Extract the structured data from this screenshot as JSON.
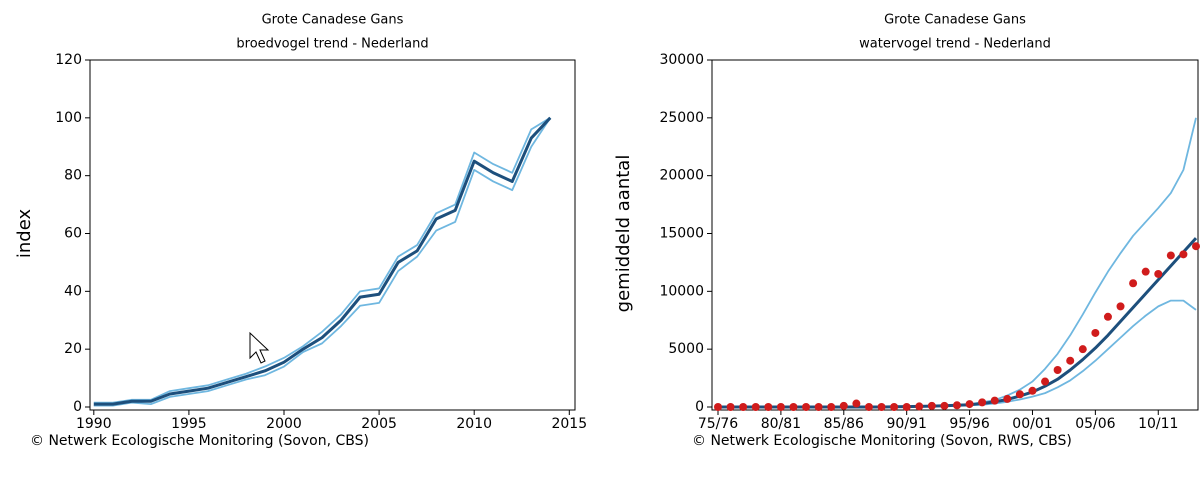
{
  "chart_data": [
    {
      "type": "line",
      "title": "Grote Canadese Gans",
      "subtitle": "broedvogel trend - Nederland",
      "y_label": "index",
      "footnote": "© Netwerk Ecologische Monitoring (Sovon, CBS)",
      "x": [
        1990,
        1991,
        1992,
        1993,
        1994,
        1995,
        1996,
        1997,
        1998,
        1999,
        2000,
        2001,
        2002,
        2003,
        2004,
        2005,
        2006,
        2007,
        2008,
        2009,
        2010,
        2011,
        2012,
        2013,
        2014
      ],
      "xlim": [
        1989.8,
        2015.3
      ],
      "xticks": [
        1990,
        1995,
        2000,
        2005,
        2010,
        2015
      ],
      "ylim": [
        0,
        120
      ],
      "yticks": [
        0,
        20,
        40,
        60,
        80,
        100,
        120
      ],
      "series": [
        {
          "color": "#1d4f7c",
          "values": [
            1,
            1,
            2,
            2,
            4.5,
            5.5,
            6.5,
            8.5,
            10.5,
            12.5,
            15.5,
            20,
            24,
            30,
            38,
            39,
            50,
            54,
            65,
            68,
            85,
            81,
            78,
            93,
            100
          ]
        },
        {
          "color": "#6fb7e0",
          "values": [
            1.5,
            1.5,
            2.5,
            2.5,
            5.5,
            6.5,
            7.5,
            9.5,
            11.5,
            14,
            17,
            21,
            26,
            32,
            40,
            41,
            52,
            56,
            67,
            70,
            88,
            84,
            81,
            96,
            100
          ]
        },
        {
          "color": "#6fb7e0",
          "values": [
            0.5,
            0.5,
            1.5,
            1,
            3.5,
            4.5,
            5.5,
            7.5,
            9.5,
            11,
            14,
            19,
            22,
            28,
            35,
            36,
            47,
            52,
            61,
            64,
            82,
            78,
            75,
            90,
            100
          ]
        }
      ]
    },
    {
      "type": "line",
      "title": "Grote Canadese Gans",
      "subtitle": "watervogel trend - Nederland",
      "y_label": "gemiddeld aantal",
      "footnote": "© Netwerk Ecologische Monitoring (Sovon, RWS, CBS)",
      "categories": [
        "75/76",
        null,
        null,
        null,
        null,
        "80/81",
        null,
        null,
        null,
        null,
        "85/86",
        null,
        null,
        null,
        null,
        "90/91",
        null,
        null,
        null,
        null,
        "95/96",
        null,
        null,
        null,
        null,
        "00/01",
        null,
        null,
        null,
        null,
        "05/06",
        null,
        null,
        null,
        null,
        "10/11",
        null,
        null,
        null
      ],
      "ylim": [
        0,
        30000
      ],
      "yticks": [
        0,
        5000,
        10000,
        15000,
        20000,
        25000,
        30000
      ],
      "series": [
        {
          "type": "line",
          "color": "#1d4f7c",
          "values": [
            0,
            0,
            0,
            0,
            0,
            0,
            0,
            0,
            0,
            0,
            0,
            0,
            0,
            0,
            20,
            30,
            50,
            80,
            110,
            150,
            200,
            300,
            450,
            650,
            950,
            1300,
            1800,
            2400,
            3200,
            4100,
            5100,
            6200,
            7400,
            8600,
            9800,
            11000,
            12200,
            13400,
            14600
          ]
        },
        {
          "type": "line",
          "color": "#6fb7e0",
          "values": [
            0,
            0,
            0,
            0,
            0,
            0,
            0,
            0,
            0,
            0,
            0,
            0,
            0,
            0,
            30,
            40,
            60,
            100,
            140,
            190,
            250,
            400,
            600,
            1000,
            1500,
            2200,
            3300,
            4600,
            6200,
            8000,
            9900,
            11700,
            13300,
            14800,
            16000,
            17200,
            18500,
            20500,
            25000
          ]
        },
        {
          "type": "line",
          "color": "#6fb7e0",
          "values": [
            0,
            0,
            0,
            0,
            0,
            0,
            0,
            0,
            0,
            0,
            0,
            0,
            0,
            0,
            10,
            20,
            40,
            60,
            80,
            110,
            150,
            200,
            300,
            450,
            650,
            900,
            1200,
            1700,
            2300,
            3100,
            4000,
            5000,
            6000,
            7000,
            7900,
            8700,
            9200,
            9200,
            8400
          ]
        },
        {
          "type": "scatter",
          "color": "#d01c1c",
          "values": [
            0,
            0,
            0,
            0,
            0,
            0,
            0,
            0,
            0,
            0,
            100,
            300,
            0,
            0,
            0,
            0,
            50,
            100,
            100,
            150,
            250,
            400,
            550,
            700,
            1100,
            1400,
            2200,
            3200,
            4000,
            5000,
            6400,
            7800,
            8700,
            10700,
            11700,
            11500,
            13100,
            13200,
            13900
          ]
        }
      ]
    }
  ]
}
